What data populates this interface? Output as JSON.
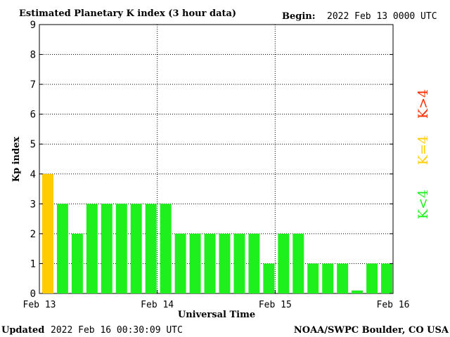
{
  "header": {
    "title": "Estimated Planetary K index (3 hour data)",
    "begin_label": "Begin:",
    "begin_value": "2022 Feb 13 0000 UTC"
  },
  "footer": {
    "updated_label": "Updated",
    "updated_value": "2022 Feb 16 00:30:09 UTC",
    "source": "NOAA/SWPC Boulder, CO USA"
  },
  "legend": {
    "above": {
      "label": "K>4",
      "color": "#ff2a00"
    },
    "equal": {
      "label": "K=4",
      "color": "#ffcc00"
    },
    "below": {
      "label": "K<4",
      "color": "#1ef01e"
    }
  },
  "chart_data": {
    "type": "bar",
    "title": "Estimated Planetary K index (3 hour data)",
    "xlabel": "Universal Time",
    "ylabel": "Kp index",
    "ylim": [
      0,
      9
    ],
    "yticks": [
      0,
      1,
      2,
      3,
      4,
      5,
      6,
      7,
      8,
      9
    ],
    "xticks": [
      "Feb 13",
      "Feb 14",
      "Feb 15",
      "Feb 16"
    ],
    "grid": true,
    "interval_hours": 3,
    "values": [
      4,
      3,
      2,
      3,
      3,
      3,
      3,
      3,
      3,
      2,
      2,
      2,
      2,
      2,
      2,
      1,
      2,
      2,
      1,
      1,
      1,
      0.1,
      1,
      1
    ]
  }
}
